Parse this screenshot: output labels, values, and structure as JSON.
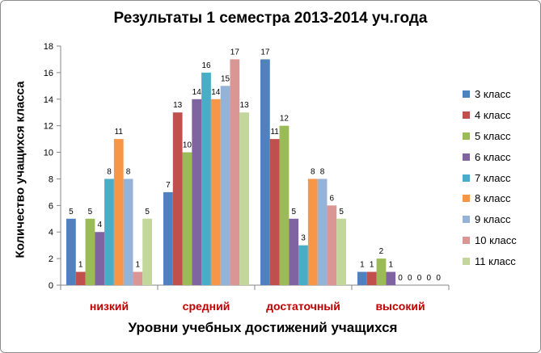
{
  "chart_data": {
    "type": "bar",
    "title": "Результаты 1 семестра 2013-2014 уч.года",
    "xlabel": "Уровни учебных достижений учащихся",
    "ylabel": "Количество учащихся класса",
    "ylim": [
      0,
      18
    ],
    "yticks": [
      "0",
      "2",
      "4",
      "6",
      "8",
      "10",
      "12",
      "14",
      "16",
      "18"
    ],
    "grid": false,
    "legend_position": "right",
    "category_color": "#c00000",
    "categories": [
      "низкий",
      "средний",
      "достаточный",
      "высокий"
    ],
    "series": [
      {
        "name": "3 класс",
        "color": "#4f81bd",
        "values": [
          5,
          7,
          17,
          1
        ]
      },
      {
        "name": "4 класс",
        "color": "#c0504d",
        "values": [
          1,
          13,
          11,
          1
        ]
      },
      {
        "name": "5 класс",
        "color": "#9bbb59",
        "values": [
          5,
          10,
          12,
          2
        ]
      },
      {
        "name": "6 класс",
        "color": "#8064a2",
        "values": [
          4,
          14,
          5,
          1
        ]
      },
      {
        "name": "7 класс",
        "color": "#4bacc6",
        "values": [
          8,
          16,
          3,
          0
        ]
      },
      {
        "name": "8 класс",
        "color": "#f79646",
        "values": [
          11,
          14,
          8,
          0
        ]
      },
      {
        "name": "9 класс",
        "color": "#95b3d7",
        "values": [
          8,
          15,
          8,
          0
        ]
      },
      {
        "name": "10 класс",
        "color": "#d99694",
        "values": [
          1,
          17,
          6,
          0
        ]
      },
      {
        "name": "11 класс",
        "color": "#c3d69b",
        "values": [
          5,
          13,
          5,
          0
        ]
      }
    ]
  }
}
